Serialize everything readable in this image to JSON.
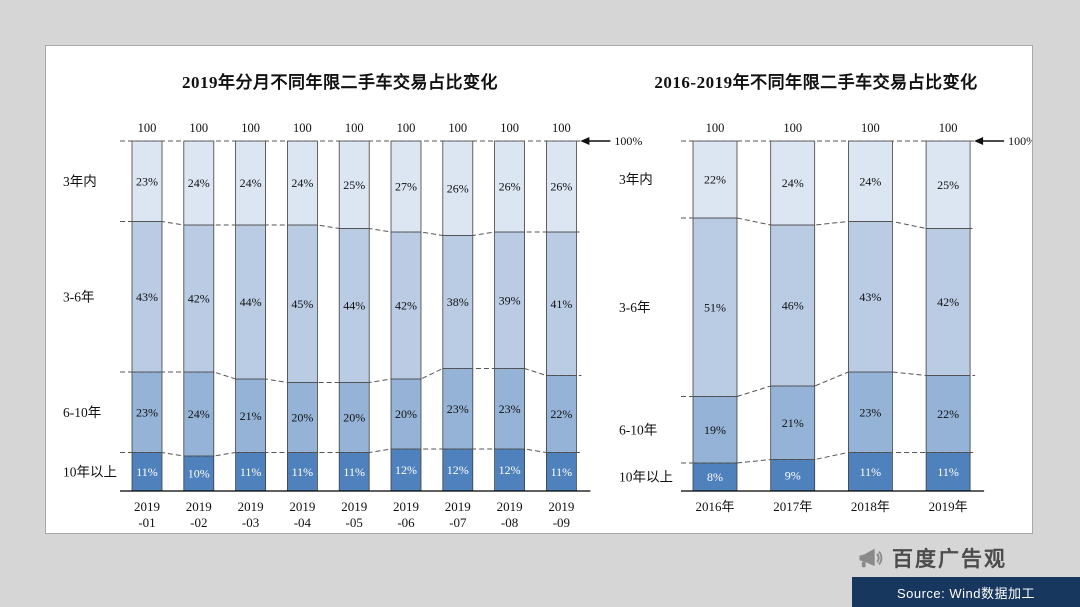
{
  "page": {
    "background": "#d6d6d6"
  },
  "panel": {
    "background": "#ffffff",
    "border_color": "#a8a8a8"
  },
  "footer": {
    "logo_icon": "megaphone-icon",
    "logo_text": "百度广告观",
    "source_text": "Source: Wind数据加工",
    "bar_color": "#17375e",
    "text_color": "#ffffff",
    "logo_color": "#8a8a8a"
  },
  "chart_data": [
    {
      "type": "bar",
      "stacked": true,
      "orientation": "vertical",
      "title": "2019年分月不同年限二手车交易占比变化",
      "total_label": "100",
      "axis_max_label": "100%",
      "ylim": [
        0,
        100
      ],
      "grid": false,
      "categories": [
        "2019-01",
        "2019-02",
        "2019-03",
        "2019-04",
        "2019-05",
        "2019-06",
        "2019-07",
        "2019-08",
        "2019-09"
      ],
      "category_lines": [
        [
          "2019",
          "-01"
        ],
        [
          "2019",
          "-02"
        ],
        [
          "2019",
          "-03"
        ],
        [
          "2019",
          "-04"
        ],
        [
          "2019",
          "-05"
        ],
        [
          "2019",
          "-06"
        ],
        [
          "2019",
          "-07"
        ],
        [
          "2019",
          "-08"
        ],
        [
          "2019",
          "-09"
        ]
      ],
      "series": [
        {
          "name": "3年内",
          "color": "#dce6f2",
          "values": [
            23,
            24,
            24,
            24,
            25,
            27,
            26,
            26,
            26
          ]
        },
        {
          "name": "3-6年",
          "color": "#b9cce4",
          "values": [
            43,
            42,
            44,
            45,
            44,
            42,
            38,
            39,
            41
          ]
        },
        {
          "name": "6-10年",
          "color": "#95b3d7",
          "values": [
            23,
            24,
            21,
            20,
            20,
            20,
            23,
            23,
            22
          ]
        },
        {
          "name": "10年以上",
          "color": "#4f81bd",
          "label_color": "#ffffff",
          "values": [
            11,
            10,
            11,
            11,
            11,
            12,
            12,
            12,
            11
          ]
        }
      ]
    },
    {
      "type": "bar",
      "stacked": true,
      "orientation": "vertical",
      "title": "2016-2019年不同年限二手车交易占比变化",
      "total_label": "100",
      "axis_max_label": "100%",
      "ylim": [
        0,
        100
      ],
      "grid": false,
      "categories": [
        "2016年",
        "2017年",
        "2018年",
        "2019年"
      ],
      "category_lines": [
        [
          "2016年"
        ],
        [
          "2017年"
        ],
        [
          "2018年"
        ],
        [
          "2019年"
        ]
      ],
      "series": [
        {
          "name": "3年内",
          "color": "#dce6f2",
          "values": [
            22,
            24,
            24,
            25
          ]
        },
        {
          "name": "3-6年",
          "color": "#b9cce4",
          "values": [
            51,
            46,
            43,
            42
          ]
        },
        {
          "name": "6-10年",
          "color": "#95b3d7",
          "values": [
            19,
            21,
            23,
            22
          ]
        },
        {
          "name": "10年以上",
          "color": "#4f81bd",
          "label_color": "#ffffff",
          "values": [
            8,
            9,
            11,
            11
          ]
        }
      ]
    }
  ]
}
